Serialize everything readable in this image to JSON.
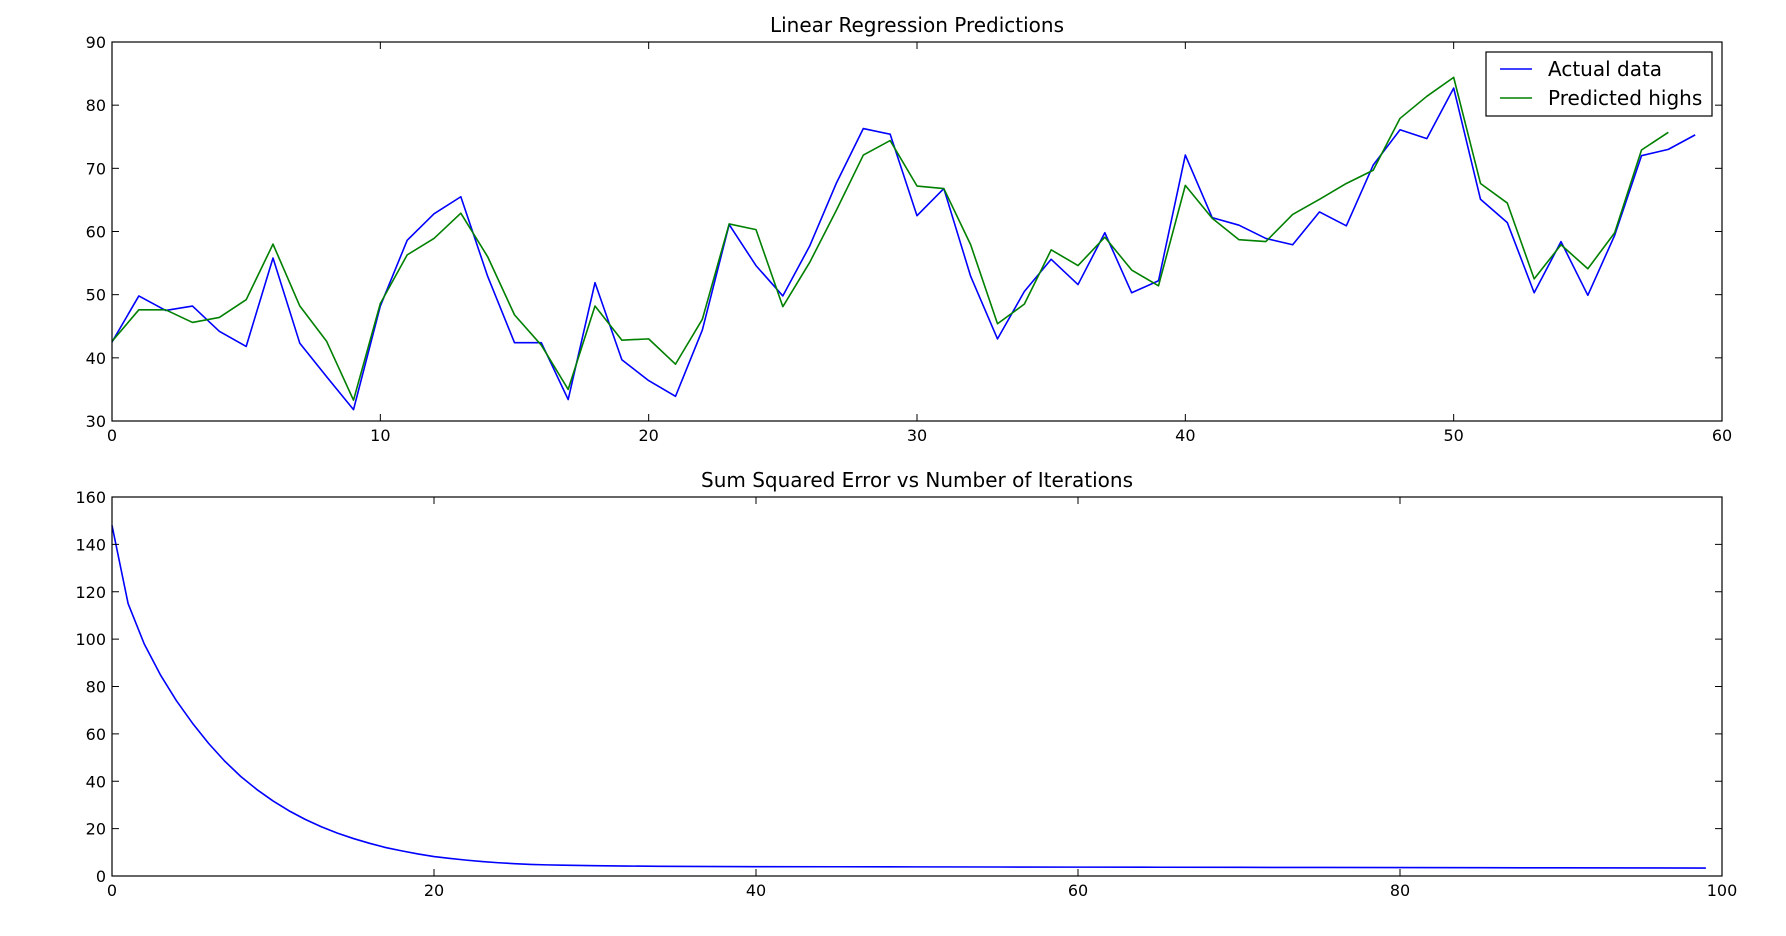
{
  "chart_data": [
    {
      "type": "line",
      "title": "Linear Regression Predictions",
      "xlabel": "",
      "ylabel": "",
      "xlim": [
        0,
        60
      ],
      "ylim": [
        30,
        90
      ],
      "xticks": [
        "0",
        "10",
        "20",
        "30",
        "40",
        "50",
        "60"
      ],
      "yticks": [
        "30",
        "40",
        "50",
        "60",
        "70",
        "80",
        "90"
      ],
      "grid": false,
      "legend": "top-right",
      "series": [
        {
          "name": "Actual data",
          "color": "#0000ff",
          "x": [
            0,
            1,
            2,
            3,
            4,
            5,
            6,
            7,
            8,
            9,
            10,
            11,
            12,
            13,
            14,
            15,
            16,
            17,
            18,
            19,
            20,
            21,
            22,
            23,
            24,
            25,
            26,
            27,
            28,
            29,
            30,
            31,
            32,
            33,
            34,
            35,
            36,
            37,
            38,
            39,
            40,
            41,
            42,
            43,
            44,
            45,
            46,
            47,
            48,
            49,
            50,
            51,
            52,
            53,
            54,
            55,
            56,
            57,
            58,
            59
          ],
          "y": [
            42.5,
            49.8,
            47.5,
            48.2,
            44.2,
            41.8,
            55.8,
            42.3,
            37.0,
            31.8,
            48.2,
            58.6,
            62.8,
            65.5,
            52.9,
            42.4,
            42.4,
            33.4,
            51.9,
            39.7,
            36.4,
            33.9,
            44.4,
            61.1,
            54.6,
            49.8,
            57.7,
            67.7,
            76.3,
            75.4,
            62.5,
            66.8,
            52.9,
            43.0,
            50.5,
            55.6,
            51.6,
            59.8,
            50.3,
            52.2,
            72.1,
            62.2,
            61.0,
            58.9,
            57.9,
            63.1,
            60.9,
            70.5,
            76.1,
            74.7,
            82.7,
            65.1,
            61.4,
            50.3,
            58.4,
            49.9,
            59.4,
            72.0,
            73.0,
            75.3
          ]
        },
        {
          "name": "Predicted highs",
          "color": "#008000",
          "x": [
            0,
            1,
            2,
            3,
            4,
            5,
            6,
            7,
            8,
            9,
            10,
            11,
            12,
            13,
            14,
            15,
            16,
            17,
            18,
            19,
            20,
            21,
            22,
            23,
            24,
            25,
            26,
            27,
            28,
            29,
            30,
            31,
            32,
            33,
            34,
            35,
            36,
            37,
            38,
            39,
            40,
            41,
            42,
            43,
            44,
            45,
            46,
            47,
            48,
            49,
            50,
            51,
            52,
            53,
            54,
            55,
            56,
            57,
            58
          ],
          "y": [
            42.6,
            47.6,
            47.6,
            45.6,
            46.4,
            49.2,
            58.0,
            48.2,
            42.6,
            33.3,
            48.6,
            56.3,
            58.9,
            62.9,
            56.0,
            46.8,
            42.0,
            35.0,
            48.2,
            42.8,
            43.0,
            39.0,
            46.1,
            61.2,
            60.3,
            48.1,
            55.1,
            63.4,
            72.1,
            74.4,
            67.2,
            66.8,
            57.9,
            45.4,
            48.5,
            57.1,
            54.6,
            59.1,
            53.9,
            51.4,
            67.3,
            62.1,
            58.7,
            58.4,
            62.7,
            65.1,
            67.6,
            69.7,
            77.9,
            81.4,
            84.4,
            67.6,
            64.5,
            52.5,
            57.9,
            54.1,
            59.8,
            72.9,
            75.7
          ]
        }
      ]
    },
    {
      "type": "line",
      "title": "Sum Squared Error vs Number of Iterations",
      "xlabel": "",
      "ylabel": "",
      "xlim": [
        0,
        100
      ],
      "ylim": [
        0,
        160
      ],
      "xticks": [
        "0",
        "20",
        "40",
        "60",
        "80",
        "100"
      ],
      "yticks": [
        "0",
        "20",
        "40",
        "60",
        "80",
        "100",
        "120",
        "140",
        "160"
      ],
      "grid": false,
      "legend": "none",
      "series": [
        {
          "color": "#0000ff",
          "x": [
            0,
            1,
            2,
            3,
            4,
            5,
            6,
            7,
            8,
            9,
            10,
            11,
            12,
            13,
            14,
            15,
            16,
            17,
            18,
            19,
            20,
            21,
            22,
            23,
            24,
            25,
            26,
            27,
            28,
            29,
            30,
            32,
            34,
            36,
            38,
            40,
            45,
            50,
            55,
            60,
            65,
            70,
            75,
            80,
            85,
            90,
            95,
            99
          ],
          "y": [
            148,
            115,
            98,
            85,
            74,
            64.5,
            56,
            48.5,
            42,
            36.5,
            31.7,
            27.5,
            23.9,
            20.8,
            18.1,
            15.8,
            13.8,
            12.0,
            10.6,
            9.3,
            8.2,
            7.4,
            6.7,
            6.1,
            5.6,
            5.2,
            4.9,
            4.7,
            4.55,
            4.45,
            4.35,
            4.2,
            4.1,
            4.05,
            4.0,
            3.95,
            3.9,
            3.85,
            3.8,
            3.75,
            3.7,
            3.65,
            3.6,
            3.55,
            3.5,
            3.45,
            3.4,
            3.35
          ]
        }
      ]
    }
  ]
}
